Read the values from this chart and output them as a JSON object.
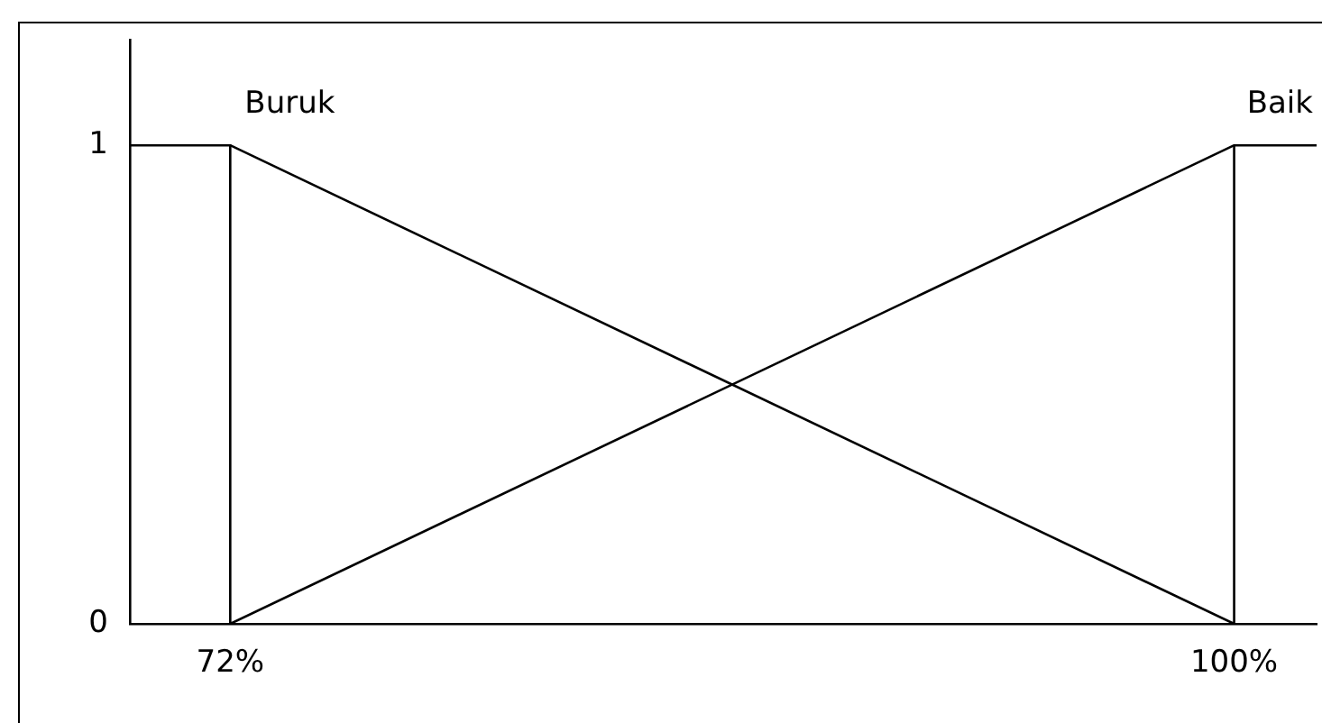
{
  "chart_data": {
    "type": "line",
    "xlim": [
      69.2,
      102.3
    ],
    "ylim": [
      0,
      1.22
    ],
    "xticks": [
      {
        "value": 72,
        "label": "72%"
      },
      {
        "value": 100,
        "label": "100%"
      }
    ],
    "yticks": [
      0,
      1
    ],
    "series": [
      {
        "name": "Buruk",
        "color": "#000000",
        "x": [
          69.2,
          72,
          100,
          100
        ],
        "values": [
          1,
          1,
          0,
          1
        ]
      },
      {
        "name": "Baik",
        "color": "#000000",
        "x": [
          72,
          72,
          100,
          102.3
        ],
        "values": [
          1,
          0,
          1,
          1
        ]
      }
    ],
    "grid": false,
    "legend": false,
    "marker": "none",
    "line_style": "solid"
  }
}
